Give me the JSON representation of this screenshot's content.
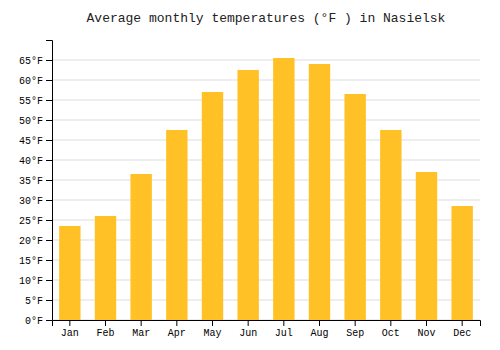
{
  "chart_data": {
    "type": "bar",
    "title": "Average monthly temperatures (°F ) in Nasielsk",
    "categories": [
      "Jan",
      "Feb",
      "Mar",
      "Apr",
      "May",
      "Jun",
      "Jul",
      "Aug",
      "Sep",
      "Oct",
      "Nov",
      "Dec"
    ],
    "values": [
      23.5,
      26.0,
      36.5,
      47.5,
      57.0,
      62.5,
      65.5,
      64.0,
      56.5,
      47.5,
      37.0,
      28.5
    ],
    "color": "#FFC125",
    "ylim": [
      0,
      70
    ],
    "yticks": [
      {
        "value": 0,
        "label": "0°F"
      },
      {
        "value": 5,
        "label": "5°F"
      },
      {
        "value": 10,
        "label": "10°F"
      },
      {
        "value": 15,
        "label": "15°F"
      },
      {
        "value": 20,
        "label": "20°F"
      },
      {
        "value": 25,
        "label": "25°F"
      },
      {
        "value": 30,
        "label": "30°F"
      },
      {
        "value": 35,
        "label": "35°F"
      },
      {
        "value": 40,
        "label": "40°F"
      },
      {
        "value": 45,
        "label": "45°F"
      },
      {
        "value": 50,
        "label": "50°F"
      },
      {
        "value": 55,
        "label": "55°F"
      },
      {
        "value": 60,
        "label": "60°F"
      },
      {
        "value": 65,
        "label": "65°F"
      }
    ],
    "grid": true
  }
}
